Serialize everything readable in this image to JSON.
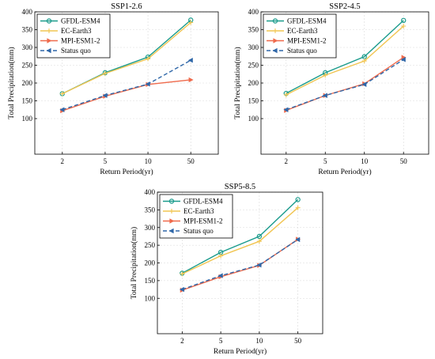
{
  "chart_data": [
    {
      "type": "line",
      "title": "SSP1-2.6",
      "xlabel": "Return Period(yr)",
      "ylabel": "Total Precipitation(mm)",
      "categories": [
        "2",
        "5",
        "10",
        "50"
      ],
      "ylim": [
        0,
        400
      ],
      "yticks": [
        100,
        150,
        200,
        250,
        300,
        350,
        400
      ],
      "grid": true,
      "legend_position": "top-left",
      "series": [
        {
          "name": "GFDL-ESM4",
          "values": [
            170,
            229,
            273,
            377
          ],
          "color": "#1a9b8c",
          "marker": "circle",
          "dash": "solid"
        },
        {
          "name": "EC-Earth3",
          "values": [
            170,
            227,
            268,
            370
          ],
          "color": "#f1c552",
          "marker": "plus",
          "dash": "solid"
        },
        {
          "name": "MPI-ESM1-2",
          "values": [
            122,
            163,
            196,
            209
          ],
          "color": "#ef6a4c",
          "marker": "triangle-right",
          "dash": "solid"
        },
        {
          "name": "Status quo",
          "values": [
            125,
            165,
            197,
            264
          ],
          "color": "#2f67a8",
          "marker": "triangle-left",
          "dash": "dashed"
        }
      ]
    },
    {
      "type": "line",
      "title": "SSP2-4.5",
      "xlabel": "Return Period(yr)",
      "ylabel": "Total Precipitation(mm)",
      "categories": [
        "2",
        "5",
        "10",
        "50"
      ],
      "ylim": [
        0,
        400
      ],
      "yticks": [
        100,
        150,
        200,
        250,
        300,
        350,
        400
      ],
      "grid": true,
      "legend_position": "top-left",
      "series": [
        {
          "name": "GFDL-ESM4",
          "values": [
            171,
            229,
            274,
            376
          ],
          "color": "#1a9b8c",
          "marker": "circle",
          "dash": "solid"
        },
        {
          "name": "EC-Earth3",
          "values": [
            167,
            222,
            262,
            360
          ],
          "color": "#f1c552",
          "marker": "plus",
          "dash": "solid"
        },
        {
          "name": "MPI-ESM1-2",
          "values": [
            123,
            165,
            198,
            272
          ],
          "color": "#ef6a4c",
          "marker": "triangle-right",
          "dash": "solid"
        },
        {
          "name": "Status quo",
          "values": [
            125,
            165,
            196,
            266
          ],
          "color": "#2f67a8",
          "marker": "triangle-left",
          "dash": "dashed"
        }
      ]
    },
    {
      "type": "line",
      "title": "SSP5-8.5",
      "xlabel": "Return Period(yr)",
      "ylabel": "Total Precipitation(mm)",
      "categories": [
        "2",
        "5",
        "10",
        "50"
      ],
      "ylim": [
        0,
        400
      ],
      "yticks": [
        100,
        150,
        200,
        250,
        300,
        350,
        400
      ],
      "grid": true,
      "legend_position": "top-left",
      "series": [
        {
          "name": "GFDL-ESM4",
          "values": [
            171,
            230,
            275,
            379
          ],
          "color": "#1a9b8c",
          "marker": "circle",
          "dash": "solid"
        },
        {
          "name": "EC-Earth3",
          "values": [
            169,
            220,
            261,
            356
          ],
          "color": "#f1c552",
          "marker": "plus",
          "dash": "solid"
        },
        {
          "name": "MPI-ESM1-2",
          "values": [
            123,
            161,
            193,
            267
          ],
          "color": "#ef6a4c",
          "marker": "triangle-right",
          "dash": "solid"
        },
        {
          "name": "Status quo",
          "values": [
            125,
            164,
            194,
            266
          ],
          "color": "#2f67a8",
          "marker": "triangle-left",
          "dash": "dashed"
        }
      ]
    }
  ]
}
